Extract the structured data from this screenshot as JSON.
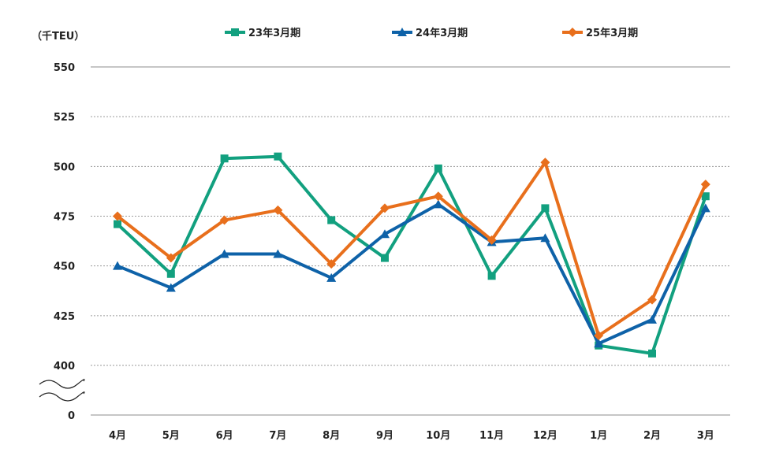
{
  "chart_data": {
    "type": "line",
    "unit_label": "（千TEU）",
    "categories": [
      "4月",
      "5月",
      "6月",
      "7月",
      "8月",
      "9月",
      "10月",
      "11月",
      "12月",
      "1月",
      "2月",
      "3月"
    ],
    "y_ticks": [
      "550",
      "525",
      "500",
      "475",
      "450",
      "425",
      "400",
      "0"
    ],
    "ylim": [
      400,
      550
    ],
    "y_axis_break": true,
    "grid": true,
    "legend_position": "top",
    "series": [
      {
        "name": "23年3月期",
        "color": "#12a07f",
        "marker": "square",
        "values": [
          471,
          446,
          504,
          505,
          473,
          454,
          499,
          445,
          479,
          410,
          406,
          485
        ]
      },
      {
        "name": "24年3月期",
        "color": "#0e62a8",
        "marker": "triangle",
        "values": [
          450,
          439,
          456,
          456,
          444,
          466,
          481,
          462,
          464,
          411,
          423,
          479
        ]
      },
      {
        "name": "25年3月期",
        "color": "#e86f1c",
        "marker": "diamond",
        "values": [
          475,
          454,
          473,
          478,
          451,
          479,
          485,
          463,
          502,
          415,
          433,
          491
        ]
      }
    ]
  }
}
